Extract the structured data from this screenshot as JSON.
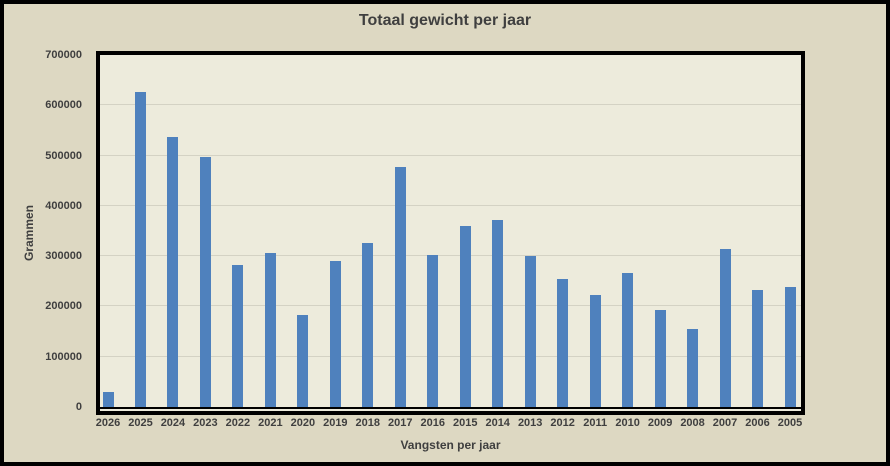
{
  "chart_data": {
    "type": "bar",
    "title": "Totaal gewicht per jaar",
    "xlabel": "Vangsten per jaar",
    "ylabel": "Grammen",
    "categories": [
      "2026",
      "2025",
      "2024",
      "2023",
      "2022",
      "2021",
      "2020",
      "2019",
      "2018",
      "2017",
      "2016",
      "2015",
      "2014",
      "2013",
      "2012",
      "2011",
      "2010",
      "2009",
      "2008",
      "2007",
      "2006",
      "2005"
    ],
    "values": [
      30000,
      626000,
      537000,
      497000,
      283000,
      307000,
      183000,
      291000,
      327000,
      478000,
      302000,
      360000,
      372000,
      301000,
      254000,
      222000,
      267000,
      193000,
      155000,
      314000,
      233000,
      238000
    ],
    "ylim": [
      0,
      700000
    ],
    "yticks": [
      0,
      100000,
      200000,
      300000,
      400000,
      500000,
      600000,
      700000
    ],
    "grid": true,
    "legend": "none",
    "colors": {
      "bar": "#4F81BD",
      "plot_background": "#EDEBDC",
      "outer_background": "#DDD8C2",
      "frame_border": "#000000",
      "gridline": "#D4D2C4",
      "text": "#3F3F3F"
    }
  }
}
